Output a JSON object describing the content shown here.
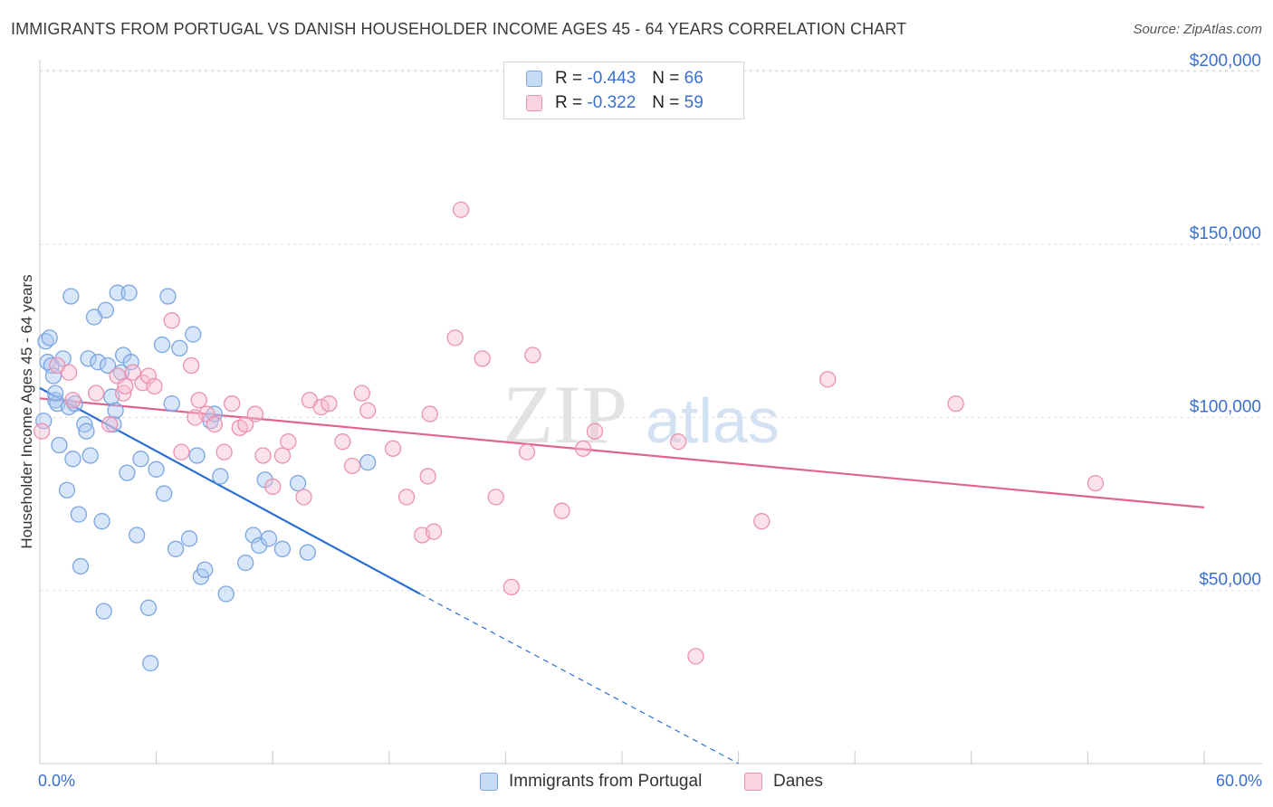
{
  "title": "IMMIGRANTS FROM PORTUGAL VS DANISH HOUSEHOLDER INCOME AGES 45 - 64 YEARS CORRELATION CHART",
  "source": "Source: ZipAtlas.com",
  "watermark": {
    "zip": "ZIP",
    "atlas": "atlas"
  },
  "legend": {
    "rows": [
      {
        "r_label": "R =",
        "r_value": "-0.443",
        "n_label": "N =",
        "n_value": "66",
        "color": "#a9c8f2",
        "border": "#7ba6e0"
      },
      {
        "r_label": "R =",
        "r_value": "-0.322",
        "n_label": "N =",
        "n_value": "59",
        "color": "#f7bcd0",
        "border": "#eb91b0"
      }
    ]
  },
  "bottom_legend": {
    "series1": "Immigrants from Portugal",
    "series2": "Danes"
  },
  "x_axis": {
    "min_label": "0.0%",
    "max_label": "60.0%"
  },
  "chart_data": {
    "type": "scatter",
    "title": "IMMIGRANTS FROM PORTUGAL VS DANISH HOUSEHOLDER INCOME AGES 45 - 64 YEARS CORRELATION CHART",
    "xlabel": "",
    "ylabel": "Householder Income Ages 45 - 64 years",
    "xlim": [
      0,
      60
    ],
    "ylim": [
      0,
      205000
    ],
    "y_ticks": [
      50000,
      100000,
      150000,
      200000
    ],
    "y_tick_labels": [
      "$50,000",
      "$100,000",
      "$150,000",
      "$200,000"
    ],
    "series": [
      {
        "name": "Immigrants from Portugal",
        "color": "#7ba6e0",
        "fill": "rgba(169,200,242,0.45)",
        "trend": {
          "x0": 0,
          "y0": 108500,
          "x1": 19.6,
          "y1": 49000,
          "dash_to_x": 36,
          "dash_to_y": 0,
          "color": "#2b6fd3"
        },
        "points": [
          [
            0.2,
            99000
          ],
          [
            0.3,
            122000
          ],
          [
            0.4,
            116000
          ],
          [
            0.5,
            123000
          ],
          [
            0.6,
            115000
          ],
          [
            0.7,
            112000
          ],
          [
            0.8,
            105000
          ],
          [
            0.9,
            104000
          ],
          [
            1.0,
            92000
          ],
          [
            1.2,
            117000
          ],
          [
            1.4,
            79000
          ],
          [
            1.5,
            103000
          ],
          [
            1.6,
            135000
          ],
          [
            1.7,
            88000
          ],
          [
            1.8,
            104000
          ],
          [
            2.0,
            72000
          ],
          [
            2.1,
            57000
          ],
          [
            2.3,
            98000
          ],
          [
            2.4,
            96000
          ],
          [
            2.5,
            117000
          ],
          [
            2.6,
            89000
          ],
          [
            2.8,
            129000
          ],
          [
            3.0,
            116000
          ],
          [
            3.2,
            70000
          ],
          [
            3.3,
            44000
          ],
          [
            3.4,
            131000
          ],
          [
            3.5,
            115000
          ],
          [
            3.7,
            106000
          ],
          [
            3.8,
            98000
          ],
          [
            3.9,
            102000
          ],
          [
            4.0,
            136000
          ],
          [
            4.2,
            113000
          ],
          [
            4.3,
            118000
          ],
          [
            4.5,
            84000
          ],
          [
            4.6,
            136000
          ],
          [
            4.7,
            116000
          ],
          [
            5.0,
            66000
          ],
          [
            5.2,
            88000
          ],
          [
            5.6,
            45000
          ],
          [
            5.7,
            29000
          ],
          [
            6.0,
            85000
          ],
          [
            6.3,
            121000
          ],
          [
            6.4,
            78000
          ],
          [
            6.6,
            135000
          ],
          [
            6.8,
            104000
          ],
          [
            7.0,
            62000
          ],
          [
            7.2,
            120000
          ],
          [
            7.7,
            65000
          ],
          [
            7.9,
            124000
          ],
          [
            8.1,
            89000
          ],
          [
            8.3,
            54000
          ],
          [
            8.5,
            56000
          ],
          [
            8.8,
            99000
          ],
          [
            9.0,
            101000
          ],
          [
            9.3,
            83000
          ],
          [
            9.6,
            49000
          ],
          [
            10.6,
            58000
          ],
          [
            11.0,
            66000
          ],
          [
            11.3,
            63000
          ],
          [
            11.6,
            82000
          ],
          [
            11.8,
            65000
          ],
          [
            12.5,
            62000
          ],
          [
            13.3,
            81000
          ],
          [
            13.8,
            61000
          ],
          [
            16.9,
            87000
          ],
          [
            0.8,
            107000
          ]
        ]
      },
      {
        "name": "Danes",
        "color": "#eb91b0",
        "fill": "rgba(247,188,208,0.45)",
        "trend": {
          "x0": 0,
          "y0": 105500,
          "x1": 60,
          "y1": 74000,
          "color": "#e0648f"
        },
        "points": [
          [
            0.1,
            96000
          ],
          [
            0.9,
            115000
          ],
          [
            1.5,
            113000
          ],
          [
            1.7,
            105000
          ],
          [
            2.9,
            107000
          ],
          [
            3.6,
            98000
          ],
          [
            4.0,
            112000
          ],
          [
            4.3,
            107000
          ],
          [
            4.4,
            109000
          ],
          [
            4.8,
            113000
          ],
          [
            5.3,
            110000
          ],
          [
            5.6,
            112000
          ],
          [
            5.9,
            109000
          ],
          [
            6.8,
            128000
          ],
          [
            7.3,
            90000
          ],
          [
            7.8,
            115000
          ],
          [
            8.2,
            105000
          ],
          [
            8.6,
            101000
          ],
          [
            9.0,
            98000
          ],
          [
            9.5,
            90000
          ],
          [
            10.3,
            97000
          ],
          [
            10.6,
            98000
          ],
          [
            11.1,
            101000
          ],
          [
            11.5,
            89000
          ],
          [
            12.0,
            80000
          ],
          [
            12.5,
            89000
          ],
          [
            12.8,
            93000
          ],
          [
            13.6,
            77000
          ],
          [
            13.9,
            105000
          ],
          [
            14.5,
            103000
          ],
          [
            14.9,
            104000
          ],
          [
            15.6,
            93000
          ],
          [
            16.1,
            86000
          ],
          [
            16.6,
            107000
          ],
          [
            16.9,
            102000
          ],
          [
            18.2,
            91000
          ],
          [
            18.9,
            77000
          ],
          [
            19.7,
            66000
          ],
          [
            20.0,
            83000
          ],
          [
            20.3,
            67000
          ],
          [
            20.1,
            101000
          ],
          [
            21.7,
            160000
          ],
          [
            21.4,
            123000
          ],
          [
            22.8,
            117000
          ],
          [
            23.5,
            77000
          ],
          [
            24.3,
            51000
          ],
          [
            25.1,
            90000
          ],
          [
            25.4,
            118000
          ],
          [
            26.9,
            73000
          ],
          [
            28.0,
            91000
          ],
          [
            28.6,
            96000
          ],
          [
            32.9,
            93000
          ],
          [
            33.8,
            31000
          ],
          [
            37.2,
            70000
          ],
          [
            40.6,
            111000
          ],
          [
            47.2,
            104000
          ],
          [
            54.4,
            81000
          ],
          [
            8.0,
            100000
          ],
          [
            9.9,
            104000
          ]
        ]
      }
    ]
  }
}
